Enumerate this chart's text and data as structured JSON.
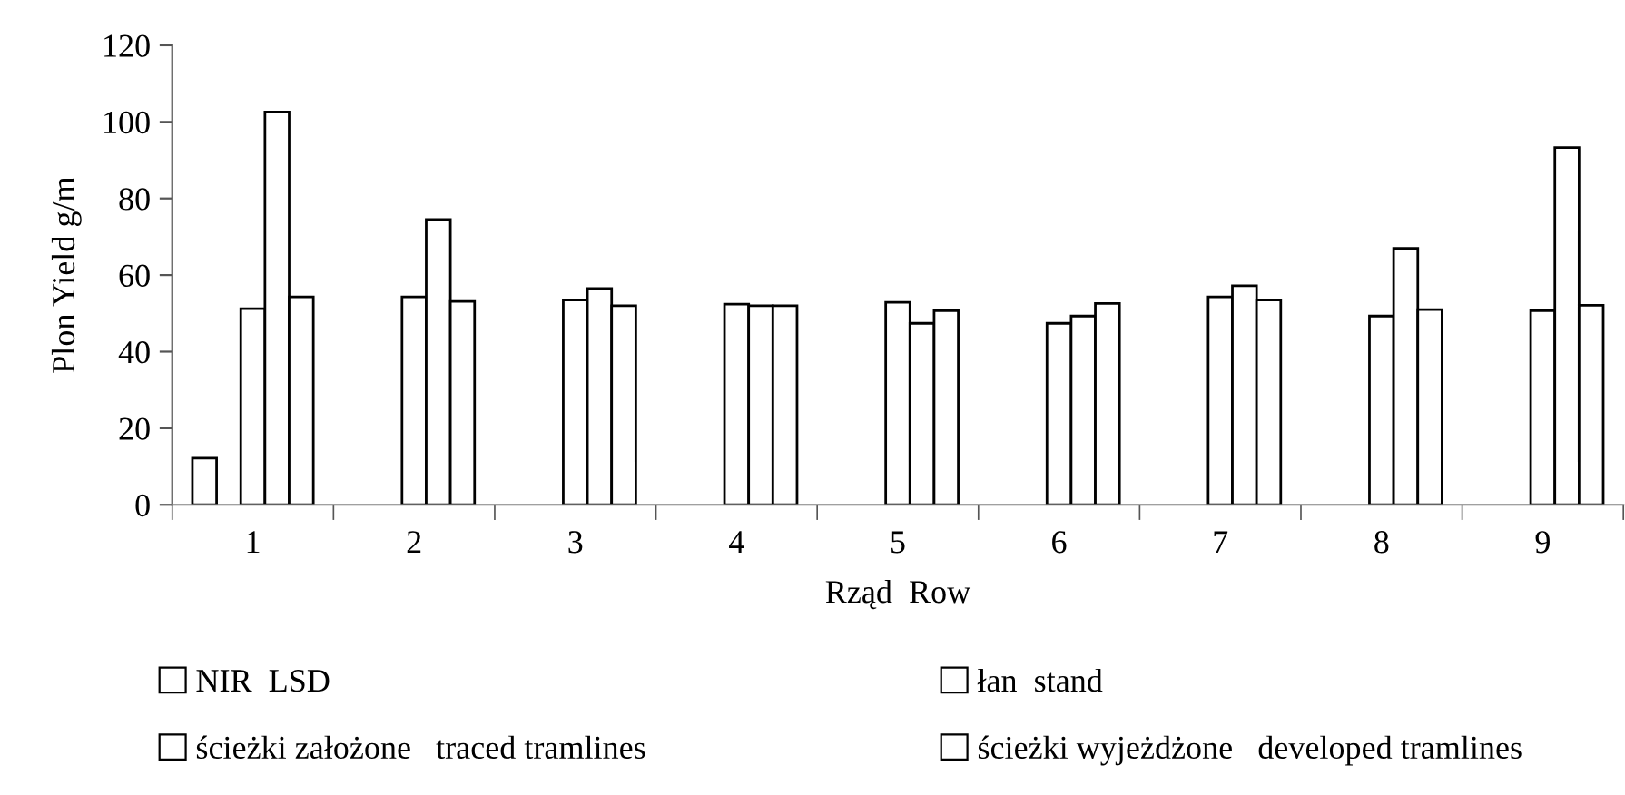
{
  "chart_data": {
    "type": "bar",
    "xlabel": "Rząd  Row",
    "ylabel": "Plon Yield g/m",
    "categories": [
      "1",
      "2",
      "3",
      "4",
      "5",
      "6",
      "7",
      "8",
      "9"
    ],
    "series": [
      {
        "name": "NIR  LSD",
        "color": "#ffffff",
        "values": [
          12.2,
          null,
          null,
          null,
          null,
          null,
          null,
          null,
          null
        ]
      },
      {
        "name": "łan  stand",
        "color": "#ffffff",
        "values": [
          51.2,
          54.3,
          53.5,
          52.4,
          52.9,
          47.4,
          54.3,
          49.3,
          50.7
        ]
      },
      {
        "name": "ścieżki założone   traced tramlines",
        "color": "#ffffff",
        "values": [
          102.6,
          74.5,
          56.5,
          52.0,
          47.4,
          49.3,
          57.2,
          67.0,
          93.3
        ]
      },
      {
        "name": "ścieżki wyjeżdżone   developed tramlines",
        "color": "#ffffff",
        "values": [
          54.3,
          53.1,
          52.0,
          52.0,
          50.7,
          52.6,
          53.5,
          51.0,
          52.1
        ]
      }
    ],
    "ylim": [
      0,
      120
    ],
    "yticks": [
      0,
      20,
      40,
      60,
      80,
      100,
      120
    ],
    "grid": false,
    "legend": "bottom"
  }
}
